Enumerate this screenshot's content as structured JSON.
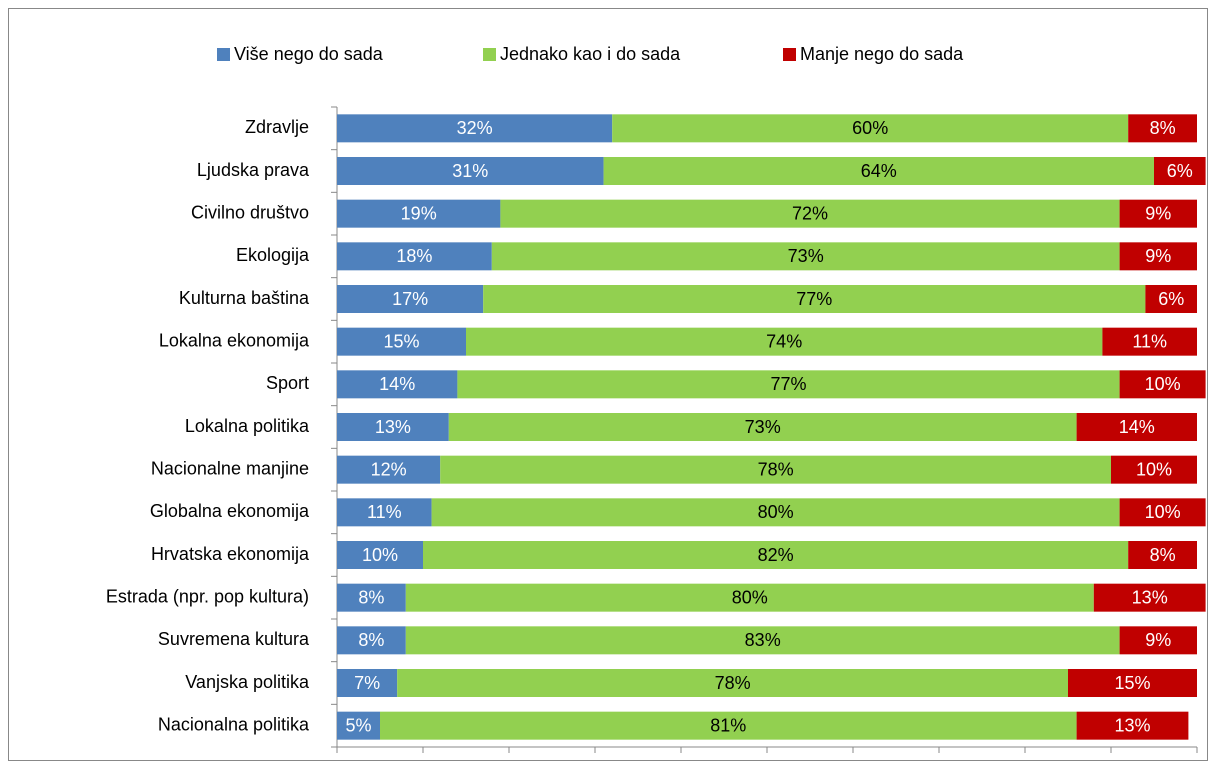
{
  "chart_data": {
    "type": "stacked_bar_horizontal",
    "categories": [
      "Zdravlje",
      "Ljudska prava",
      "Civilno društvo",
      "Ekologija",
      "Kulturna baština",
      "Lokalna ekonomija",
      "Sport",
      "Lokalna politika",
      "Nacionalne manjine",
      "Globalna ekonomija",
      "Hrvatska ekonomija",
      "Estrada (npr. pop kultura)",
      "Suvremena kultura",
      "Vanjska politika",
      "Nacionalna politika"
    ],
    "series": [
      {
        "name": "Više nego do sada",
        "color": "#4f81bd",
        "label_color": "#ffffff",
        "values": [
          32,
          31,
          19,
          18,
          17,
          15,
          14,
          13,
          12,
          11,
          10,
          8,
          8,
          7,
          5
        ],
        "value_labels": [
          "32%",
          "31%",
          "19%",
          "18%",
          "17%",
          "15%",
          "14%",
          "13%",
          "12%",
          "11%",
          "10%",
          "8%",
          "8%",
          "7%",
          "5%"
        ]
      },
      {
        "name": "Jednako kao i do sada",
        "color": "#92d050",
        "label_color": "#000000",
        "values": [
          60,
          64,
          72,
          73,
          77,
          74,
          77,
          73,
          78,
          80,
          82,
          80,
          83,
          78,
          81
        ],
        "value_labels": [
          "60%",
          "64%",
          "72%",
          "73%",
          "77%",
          "74%",
          "77%",
          "73%",
          "78%",
          "80%",
          "82%",
          "80%",
          "83%",
          "78%",
          "81%"
        ]
      },
      {
        "name": "Manje nego do sada",
        "color": "#c00000",
        "label_color": "#ffffff",
        "values": [
          8,
          6,
          9,
          9,
          6,
          11,
          10,
          14,
          10,
          10,
          8,
          13,
          9,
          15,
          13
        ],
        "value_labels": [
          "8%",
          "6%",
          "9%",
          "9%",
          "6%",
          "11%",
          "10%",
          "14%",
          "10%",
          "10%",
          "8%",
          "13%",
          "9%",
          "15%",
          "13%"
        ]
      }
    ],
    "xlim": [
      0,
      100
    ],
    "xticks": [
      0,
      10,
      20,
      30,
      40,
      50,
      60,
      70,
      80,
      90,
      100
    ],
    "legend": "top"
  }
}
